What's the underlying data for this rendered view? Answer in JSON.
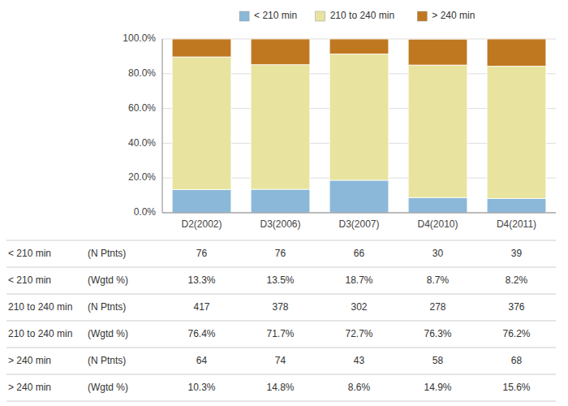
{
  "chart_data": {
    "type": "bar",
    "stacked": true,
    "categories": [
      "D2(2002)",
      "D3(2006)",
      "D3(2007)",
      "D4(2010)",
      "D4(2011)"
    ],
    "series": [
      {
        "name": "< 210 min",
        "color": "#8BB8D8",
        "values": [
          13.3,
          13.5,
          18.7,
          8.7,
          8.2
        ]
      },
      {
        "name": "210 to 240 min",
        "color": "#E8E4A0",
        "values": [
          76.4,
          71.7,
          72.7,
          76.3,
          76.2
        ]
      },
      {
        "name": "> 240 min",
        "color": "#C07820",
        "values": [
          10.3,
          14.8,
          8.6,
          14.9,
          15.6
        ]
      }
    ],
    "ylim": [
      0,
      100
    ],
    "yticks": [
      {
        "value": 0,
        "label": "0.0%"
      },
      {
        "value": 20,
        "label": "20.0%"
      },
      {
        "value": 40,
        "label": "40.0%"
      },
      {
        "value": 60,
        "label": "60.0%"
      },
      {
        "value": 80,
        "label": "80.0%"
      },
      {
        "value": 100,
        "label": "100.0%"
      }
    ],
    "grid": true,
    "legend": "top",
    "table": [
      {
        "name": "< 210 min",
        "sublabel": "(N Ptnts)",
        "values": [
          76,
          76,
          66,
          30,
          39
        ]
      },
      {
        "name": "< 210 min",
        "sublabel": "(Wgtd %)",
        "values": [
          13.3,
          13.5,
          18.7,
          8.7,
          8.2
        ],
        "value_labels": [
          "13.3%",
          "13.5%",
          "18.7%",
          "8.7%",
          "8.2%"
        ]
      },
      {
        "name": "210 to 240 min",
        "sublabel": "(N Ptnts)",
        "values": [
          417,
          378,
          302,
          278,
          376
        ]
      },
      {
        "name": "210 to 240 min",
        "sublabel": "(Wgtd %)",
        "values": [
          76.4,
          71.7,
          72.7,
          76.3,
          76.2
        ],
        "value_labels": [
          "76.4%",
          "71.7%",
          "72.7%",
          "76.3%",
          "76.2%"
        ]
      },
      {
        "name": "> 240 min",
        "sublabel": "(N Ptnts)",
        "values": [
          64,
          74,
          43,
          58,
          68
        ]
      },
      {
        "name": "> 240 min",
        "sublabel": "(Wgtd %)",
        "values": [
          10.3,
          14.8,
          8.6,
          14.9,
          15.6
        ],
        "value_labels": [
          "10.3%",
          "14.8%",
          "8.6%",
          "14.9%",
          "15.6%"
        ]
      }
    ]
  }
}
